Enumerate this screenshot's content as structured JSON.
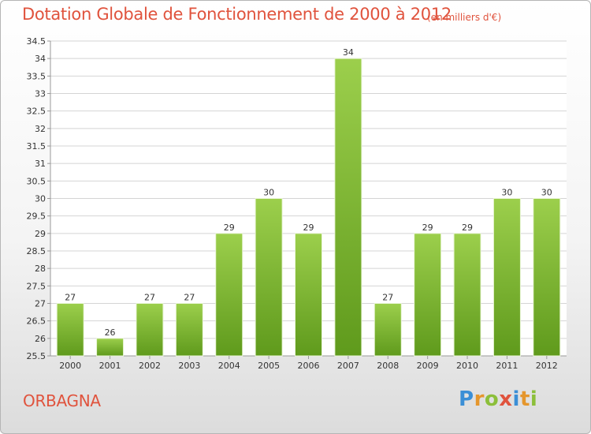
{
  "title": "Dotation Globale de Fonctionnement de 2000 à 2012",
  "subtitle": "(en milliers d'€)",
  "commune": "ORBAGNA",
  "brand": {
    "text": "Proxiti",
    "letters": [
      {
        "ch": "P",
        "color": "#3b8fd6"
      },
      {
        "ch": "r",
        "color": "#e5962c"
      },
      {
        "ch": "o",
        "color": "#8cbf3a"
      },
      {
        "ch": "x",
        "color": "#e0533d"
      },
      {
        "ch": "i",
        "color": "#3b8fd6"
      },
      {
        "ch": "t",
        "color": "#e5962c"
      },
      {
        "ch": "i",
        "color": "#8cbf3a"
      }
    ]
  },
  "colors": {
    "bar_top": "#9ccf4c",
    "bar_bottom": "#5f9a1c",
    "text_accent": "#e0533d",
    "grid": "#d4d4d4",
    "axis": "#999999"
  },
  "chart_data": {
    "type": "bar",
    "categories": [
      "2000",
      "2001",
      "2002",
      "2003",
      "2004",
      "2005",
      "2006",
      "2007",
      "2008",
      "2009",
      "2010",
      "2011",
      "2012"
    ],
    "values": [
      27,
      26,
      27,
      27,
      29,
      30,
      29,
      34,
      27,
      29,
      29,
      30,
      30
    ],
    "value_labels": [
      "27",
      "26",
      "27",
      "27",
      "29",
      "30",
      "29",
      "34",
      "27",
      "29",
      "29",
      "30",
      "30"
    ],
    "ylim": [
      25.5,
      34.5
    ],
    "yticks": [
      "25.5",
      "26",
      "26.5",
      "27",
      "27.5",
      "28",
      "28.5",
      "29",
      "29.5",
      "30",
      "30.5",
      "31",
      "31.5",
      "32",
      "32.5",
      "33",
      "33.5",
      "34",
      "34.5"
    ],
    "grid": true
  }
}
